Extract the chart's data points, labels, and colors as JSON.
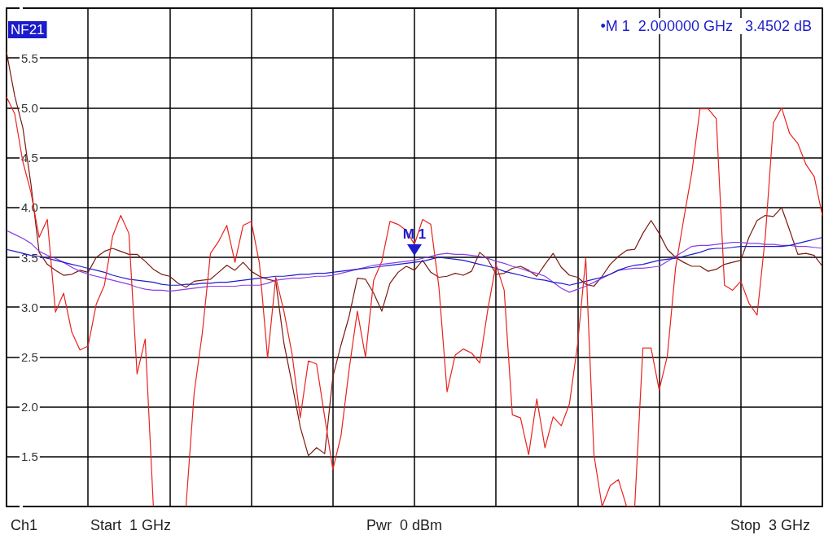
{
  "chart_data": {
    "type": "line",
    "title": "NF21",
    "annotations": [
      {
        "text": "M 1",
        "y": 3.4502
      },
      "•M 1  2.000000 GHz   3.4502 dB",
      "Ch1",
      "Start  1 GHz",
      "Pwr  0 dBm",
      "Stop  3 GHz"
    ],
    "categories": [
      null,
      null,
      null,
      null,
      null,
      null,
      null,
      null,
      null,
      null,
      null,
      null,
      null,
      null,
      null,
      null,
      null,
      null,
      null,
      null,
      null,
      null,
      null,
      null,
      null,
      null,
      null,
      null,
      null,
      null,
      null,
      null,
      null,
      null,
      null,
      null,
      null,
      null,
      null,
      null,
      null,
      null,
      null,
      null,
      null,
      null,
      null,
      null,
      null,
      null,
      null,
      null,
      null,
      null,
      null,
      null,
      null,
      null,
      null,
      null,
      null,
      null,
      null,
      null,
      null,
      null,
      null,
      null,
      null,
      null,
      null,
      null,
      null,
      null,
      null,
      null,
      null,
      null,
      null,
      null,
      null,
      null,
      null,
      null,
      null,
      null,
      null,
      null,
      null,
      null,
      null,
      null,
      null,
      null,
      null,
      null,
      null,
      null,
      null,
      null,
      null
    ],
    "ylim": [
      1,
      6
    ],
    "yticks": [
      {
        "value": 1,
        "label": null
      },
      {
        "value": 1.5,
        "label": "1.5"
      },
      {
        "value": 2,
        "label": "2.0"
      },
      {
        "value": 2.5,
        "label": "2.5"
      },
      {
        "value": 3,
        "label": "3.0"
      },
      {
        "value": 3.5,
        "label": "3.5"
      },
      {
        "value": 4,
        "label": "4.0"
      },
      {
        "value": 4.5,
        "label": "4.5"
      },
      {
        "value": 5,
        "label": "5.0"
      },
      {
        "value": 5.5,
        "label": "5.5"
      },
      {
        "value": 6,
        "label": null
      }
    ],
    "tick_labels": "y",
    "grid": true,
    "marker": "none",
    "series": [
      {
        "color": "#e8231f",
        "values": [
          5.11,
          4.94,
          4.46,
          4.15,
          3.7,
          3.88,
          2.95,
          3.14,
          2.75,
          2.57,
          2.61,
          3.03,
          3.22,
          3.71,
          3.92,
          3.74,
          2.33,
          2.68,
          1.0,
          null,
          null,
          null,
          1.0,
          2.14,
          2.74,
          3.54,
          3.66,
          3.82,
          3.45,
          3.82,
          3.86,
          3.44,
          2.49,
          3.3,
          2.96,
          2.53,
          1.89,
          2.46,
          2.43,
          1.9,
          1.37,
          1.71,
          2.38,
          2.96,
          2.5,
          3.27,
          3.46,
          3.86,
          3.83,
          3.77,
          3.63,
          3.88,
          3.83,
          3.2,
          2.15,
          2.52,
          2.58,
          2.54,
          2.44,
          2.98,
          3.43,
          3.17,
          1.92,
          1.89,
          1.52,
          2.08,
          1.59,
          1.9,
          1.81,
          2.03,
          2.63,
          3.49,
          1.52,
          1.0,
          1.21,
          1.27,
          1.0,
          1.0,
          2.59,
          2.59,
          2.17,
          2.51,
          3.39,
          3.88,
          4.35,
          4.99,
          4.99,
          4.89,
          3.22,
          3.17,
          3.26,
          3.04,
          2.92,
          3.7,
          4.85,
          5.0,
          4.74,
          4.64,
          4.43,
          4.31,
          3.92
        ]
      },
      {
        "color": "#7b1a12",
        "values": [
          5.56,
          5.12,
          4.8,
          4.23,
          3.55,
          3.43,
          3.37,
          3.32,
          3.33,
          3.37,
          3.35,
          3.5,
          3.56,
          3.59,
          3.56,
          3.53,
          3.53,
          3.46,
          3.38,
          3.33,
          3.31,
          3.24,
          3.2,
          3.26,
          3.27,
          3.28,
          3.35,
          3.42,
          3.37,
          3.45,
          3.36,
          3.31,
          3.28,
          3.26,
          2.64,
          2.23,
          1.8,
          1.51,
          1.59,
          1.53,
          2.3,
          2.62,
          2.91,
          3.29,
          3.28,
          3.14,
          2.96,
          3.24,
          3.35,
          3.41,
          3.37,
          3.47,
          3.35,
          3.3,
          3.31,
          3.34,
          3.32,
          3.36,
          3.55,
          3.48,
          3.33,
          3.34,
          3.39,
          3.41,
          3.37,
          3.31,
          3.43,
          3.54,
          3.4,
          3.32,
          3.3,
          3.23,
          3.21,
          3.31,
          3.43,
          3.51,
          3.57,
          3.58,
          3.74,
          3.87,
          3.74,
          3.58,
          3.5,
          3.45,
          3.41,
          3.41,
          3.36,
          3.38,
          3.43,
          3.45,
          3.47,
          3.7,
          3.87,
          3.92,
          3.91,
          4.0,
          3.77,
          3.53,
          3.54,
          3.52,
          3.41
        ]
      },
      {
        "color": "#8a3ee6",
        "values": [
          3.77,
          3.73,
          3.69,
          3.64,
          3.56,
          3.52,
          3.49,
          3.45,
          3.4,
          3.36,
          3.33,
          3.31,
          3.29,
          3.27,
          3.25,
          3.23,
          3.2,
          3.18,
          3.17,
          3.17,
          3.16,
          3.17,
          3.18,
          3.19,
          3.2,
          3.21,
          3.21,
          3.21,
          3.21,
          3.22,
          3.22,
          3.22,
          3.24,
          3.27,
          3.28,
          3.29,
          3.29,
          3.3,
          3.31,
          3.31,
          3.32,
          3.34,
          3.36,
          3.38,
          3.4,
          3.42,
          3.43,
          3.44,
          3.45,
          3.46,
          3.47,
          3.49,
          3.51,
          3.53,
          3.54,
          3.53,
          3.53,
          3.52,
          3.51,
          3.49,
          3.46,
          3.44,
          3.41,
          3.39,
          3.36,
          3.34,
          3.31,
          3.25,
          3.19,
          3.15,
          3.18,
          3.21,
          3.25,
          3.29,
          3.33,
          3.37,
          3.38,
          3.39,
          3.39,
          3.4,
          3.41,
          3.46,
          3.51,
          3.56,
          3.61,
          3.62,
          3.62,
          3.63,
          3.64,
          3.65,
          3.65,
          3.64,
          3.64,
          3.63,
          3.63,
          3.62,
          3.62,
          3.61,
          3.61,
          3.6,
          3.59
        ]
      },
      {
        "color": "#1c1ccc",
        "values": [
          3.58,
          3.56,
          3.54,
          3.52,
          3.51,
          3.49,
          3.47,
          3.45,
          3.43,
          3.41,
          3.39,
          3.37,
          3.35,
          3.32,
          3.3,
          3.28,
          3.27,
          3.26,
          3.25,
          3.23,
          3.22,
          3.22,
          3.23,
          3.23,
          3.24,
          3.24,
          3.25,
          3.25,
          3.26,
          3.27,
          3.28,
          3.29,
          3.3,
          3.31,
          3.31,
          3.32,
          3.33,
          3.33,
          3.34,
          3.34,
          3.35,
          3.36,
          3.37,
          3.38,
          3.39,
          3.4,
          3.41,
          3.42,
          3.43,
          3.44,
          3.45,
          3.46,
          3.48,
          3.5,
          3.49,
          3.48,
          3.47,
          3.45,
          3.43,
          3.41,
          3.39,
          3.36,
          3.34,
          3.32,
          3.3,
          3.28,
          3.27,
          3.25,
          3.24,
          3.22,
          3.24,
          3.26,
          3.28,
          3.3,
          3.33,
          3.37,
          3.4,
          3.42,
          3.43,
          3.45,
          3.47,
          3.48,
          3.49,
          3.51,
          3.53,
          3.55,
          3.58,
          3.59,
          3.59,
          3.6,
          3.61,
          3.61,
          3.61,
          3.61,
          3.61,
          3.61,
          3.62,
          3.64,
          3.66,
          3.68,
          3.7
        ]
      }
    ]
  }
}
